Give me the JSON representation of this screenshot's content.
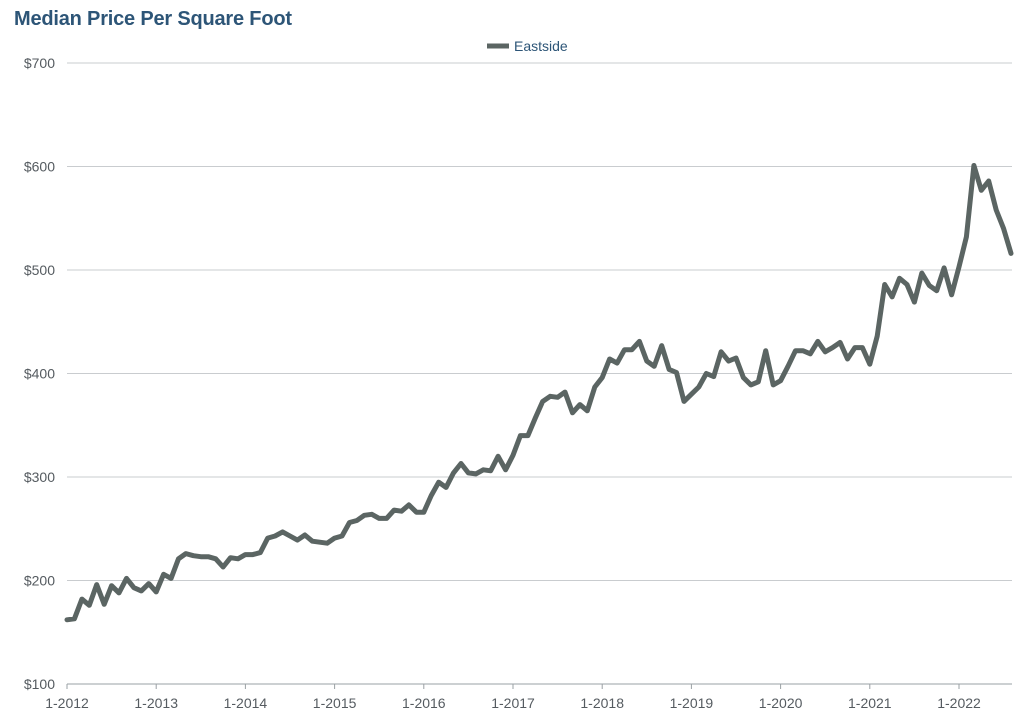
{
  "chart_data": {
    "type": "line",
    "title": "Median Price Per Square Foot",
    "xlabel": "",
    "ylabel": "",
    "ylim": [
      100,
      700
    ],
    "y_ticks": [
      100,
      200,
      300,
      400,
      500,
      600,
      700
    ],
    "y_tick_labels": [
      "$100",
      "$200",
      "$300",
      "$400",
      "$500",
      "$600",
      "$700"
    ],
    "x_tick_labels": [
      "1-2012",
      "1-2013",
      "1-2014",
      "1-2015",
      "1-2016",
      "1-2017",
      "1-2018",
      "1-2019",
      "1-2020",
      "1-2021",
      "1-2022"
    ],
    "grid": "horizontal",
    "legend_position": "top-center",
    "color": "#5b6563",
    "series": [
      {
        "name": "Eastside",
        "start": "1-2012",
        "frequency": "monthly",
        "values": [
          162,
          163,
          182,
          176,
          196,
          177,
          195,
          188,
          202,
          193,
          190,
          197,
          189,
          206,
          202,
          221,
          226,
          224,
          223,
          223,
          221,
          213,
          222,
          221,
          225,
          225,
          227,
          241,
          243,
          247,
          243,
          239,
          244,
          238,
          237,
          236,
          241,
          243,
          256,
          258,
          263,
          264,
          260,
          260,
          268,
          267,
          273,
          266,
          266,
          282,
          295,
          290,
          304,
          313,
          304,
          303,
          307,
          306,
          320,
          307,
          321,
          340,
          340,
          357,
          373,
          378,
          377,
          382,
          362,
          370,
          364,
          387,
          396,
          414,
          410,
          423,
          423,
          431,
          412,
          407,
          427,
          404,
          401,
          373,
          380,
          387,
          400,
          397,
          421,
          412,
          415,
          396,
          389,
          392,
          422,
          389,
          393,
          407,
          422,
          422,
          419,
          431,
          421,
          425,
          430,
          414,
          425,
          425,
          409,
          436,
          486,
          474,
          492,
          486,
          469,
          497,
          485,
          480,
          502,
          476,
          503,
          532,
          601,
          577,
          586,
          558,
          540,
          516
        ]
      }
    ]
  }
}
